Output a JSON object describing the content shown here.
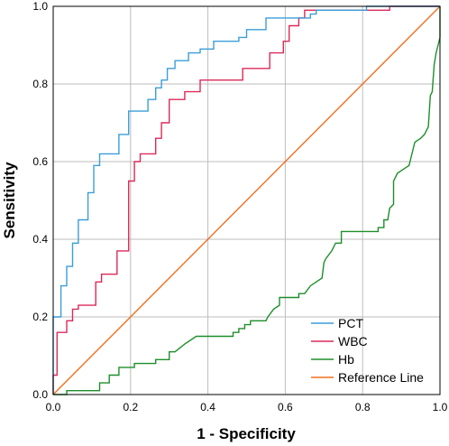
{
  "chart_data": {
    "type": "line",
    "title": "",
    "xlabel": "1 - Specificity",
    "ylabel": "Sensitivity",
    "xlim": [
      0,
      1
    ],
    "ylim": [
      0,
      1
    ],
    "grid": true,
    "legend_position": "bottom-right",
    "x_ticks": [
      "0.0",
      "0.2",
      "0.4",
      "0.6",
      "0.8",
      "1.0"
    ],
    "y_ticks": [
      "0.0",
      "0.2",
      "0.4",
      "0.6",
      "0.8",
      "1.0"
    ],
    "series": [
      {
        "name": "PCT",
        "color": "#3b9ed8",
        "points": [
          [
            0,
            0
          ],
          [
            0,
            0.2
          ],
          [
            0.02,
            0.2
          ],
          [
            0.02,
            0.28
          ],
          [
            0.035,
            0.28
          ],
          [
            0.035,
            0.33
          ],
          [
            0.05,
            0.33
          ],
          [
            0.05,
            0.39
          ],
          [
            0.065,
            0.39
          ],
          [
            0.065,
            0.45
          ],
          [
            0.09,
            0.45
          ],
          [
            0.09,
            0.52
          ],
          [
            0.105,
            0.52
          ],
          [
            0.105,
            0.59
          ],
          [
            0.12,
            0.59
          ],
          [
            0.12,
            0.62
          ],
          [
            0.17,
            0.62
          ],
          [
            0.17,
            0.67
          ],
          [
            0.195,
            0.67
          ],
          [
            0.195,
            0.73
          ],
          [
            0.245,
            0.73
          ],
          [
            0.245,
            0.76
          ],
          [
            0.265,
            0.76
          ],
          [
            0.265,
            0.79
          ],
          [
            0.28,
            0.79
          ],
          [
            0.28,
            0.81
          ],
          [
            0.295,
            0.81
          ],
          [
            0.295,
            0.84
          ],
          [
            0.315,
            0.84
          ],
          [
            0.315,
            0.86
          ],
          [
            0.35,
            0.86
          ],
          [
            0.35,
            0.88
          ],
          [
            0.38,
            0.88
          ],
          [
            0.38,
            0.89
          ],
          [
            0.415,
            0.89
          ],
          [
            0.415,
            0.91
          ],
          [
            0.48,
            0.91
          ],
          [
            0.48,
            0.92
          ],
          [
            0.5,
            0.92
          ],
          [
            0.5,
            0.94
          ],
          [
            0.55,
            0.94
          ],
          [
            0.55,
            0.97
          ],
          [
            0.665,
            0.97
          ],
          [
            0.665,
            0.98
          ],
          [
            0.68,
            0.98
          ],
          [
            0.68,
            0.99
          ],
          [
            0.81,
            0.99
          ],
          [
            0.81,
            1.0
          ],
          [
            1.0,
            1.0
          ]
        ]
      },
      {
        "name": "WBC",
        "color": "#dc2a5a",
        "points": [
          [
            0,
            0
          ],
          [
            0,
            0.05
          ],
          [
            0.01,
            0.05
          ],
          [
            0.01,
            0.16
          ],
          [
            0.035,
            0.16
          ],
          [
            0.035,
            0.19
          ],
          [
            0.05,
            0.19
          ],
          [
            0.05,
            0.22
          ],
          [
            0.065,
            0.22
          ],
          [
            0.065,
            0.23
          ],
          [
            0.11,
            0.23
          ],
          [
            0.11,
            0.29
          ],
          [
            0.125,
            0.29
          ],
          [
            0.125,
            0.31
          ],
          [
            0.165,
            0.31
          ],
          [
            0.165,
            0.37
          ],
          [
            0.195,
            0.37
          ],
          [
            0.195,
            0.55
          ],
          [
            0.21,
            0.55
          ],
          [
            0.21,
            0.6
          ],
          [
            0.225,
            0.6
          ],
          [
            0.225,
            0.62
          ],
          [
            0.265,
            0.62
          ],
          [
            0.265,
            0.66
          ],
          [
            0.28,
            0.66
          ],
          [
            0.28,
            0.7
          ],
          [
            0.3,
            0.7
          ],
          [
            0.3,
            0.76
          ],
          [
            0.34,
            0.76
          ],
          [
            0.34,
            0.78
          ],
          [
            0.38,
            0.78
          ],
          [
            0.38,
            0.81
          ],
          [
            0.49,
            0.81
          ],
          [
            0.49,
            0.84
          ],
          [
            0.56,
            0.84
          ],
          [
            0.56,
            0.88
          ],
          [
            0.595,
            0.88
          ],
          [
            0.595,
            0.91
          ],
          [
            0.61,
            0.91
          ],
          [
            0.61,
            0.95
          ],
          [
            0.635,
            0.95
          ],
          [
            0.635,
            0.97
          ],
          [
            0.65,
            0.97
          ],
          [
            0.65,
            0.99
          ],
          [
            0.87,
            0.99
          ],
          [
            0.87,
            1.0
          ],
          [
            1.0,
            1.0
          ]
        ]
      },
      {
        "name": "Hb",
        "color": "#1e8f2a",
        "points": [
          [
            0,
            0
          ],
          [
            0.035,
            0
          ],
          [
            0.035,
            0.01
          ],
          [
            0.12,
            0.01
          ],
          [
            0.12,
            0.03
          ],
          [
            0.145,
            0.03
          ],
          [
            0.145,
            0.05
          ],
          [
            0.17,
            0.05
          ],
          [
            0.17,
            0.07
          ],
          [
            0.21,
            0.07
          ],
          [
            0.21,
            0.08
          ],
          [
            0.265,
            0.08
          ],
          [
            0.265,
            0.09
          ],
          [
            0.3,
            0.09
          ],
          [
            0.3,
            0.11
          ],
          [
            0.315,
            0.11
          ],
          [
            0.34,
            0.13
          ],
          [
            0.37,
            0.15
          ],
          [
            0.465,
            0.15
          ],
          [
            0.465,
            0.16
          ],
          [
            0.48,
            0.16
          ],
          [
            0.48,
            0.17
          ],
          [
            0.495,
            0.17
          ],
          [
            0.495,
            0.18
          ],
          [
            0.51,
            0.18
          ],
          [
            0.51,
            0.19
          ],
          [
            0.55,
            0.19
          ],
          [
            0.555,
            0.2
          ],
          [
            0.57,
            0.22
          ],
          [
            0.585,
            0.23
          ],
          [
            0.585,
            0.25
          ],
          [
            0.635,
            0.25
          ],
          [
            0.635,
            0.26
          ],
          [
            0.65,
            0.26
          ],
          [
            0.665,
            0.28
          ],
          [
            0.68,
            0.29
          ],
          [
            0.695,
            0.3
          ],
          [
            0.7,
            0.34
          ],
          [
            0.705,
            0.35
          ],
          [
            0.72,
            0.37
          ],
          [
            0.73,
            0.39
          ],
          [
            0.745,
            0.39
          ],
          [
            0.745,
            0.42
          ],
          [
            0.84,
            0.42
          ],
          [
            0.84,
            0.43
          ],
          [
            0.855,
            0.43
          ],
          [
            0.855,
            0.45
          ],
          [
            0.865,
            0.45
          ],
          [
            0.87,
            0.48
          ],
          [
            0.88,
            0.49
          ],
          [
            0.88,
            0.55
          ],
          [
            0.89,
            0.57
          ],
          [
            0.905,
            0.58
          ],
          [
            0.92,
            0.59
          ],
          [
            0.935,
            0.65
          ],
          [
            0.95,
            0.66
          ],
          [
            0.96,
            0.67
          ],
          [
            0.97,
            0.69
          ],
          [
            0.975,
            0.77
          ],
          [
            0.98,
            0.78
          ],
          [
            0.985,
            0.85
          ],
          [
            0.99,
            0.88
          ],
          [
            0.995,
            0.9
          ],
          [
            1.0,
            0.92
          ],
          [
            1.0,
            1.0
          ]
        ]
      },
      {
        "name": "Reference Line",
        "color": "#f0701e",
        "points": [
          [
            0,
            0
          ],
          [
            1,
            1
          ]
        ]
      }
    ]
  }
}
